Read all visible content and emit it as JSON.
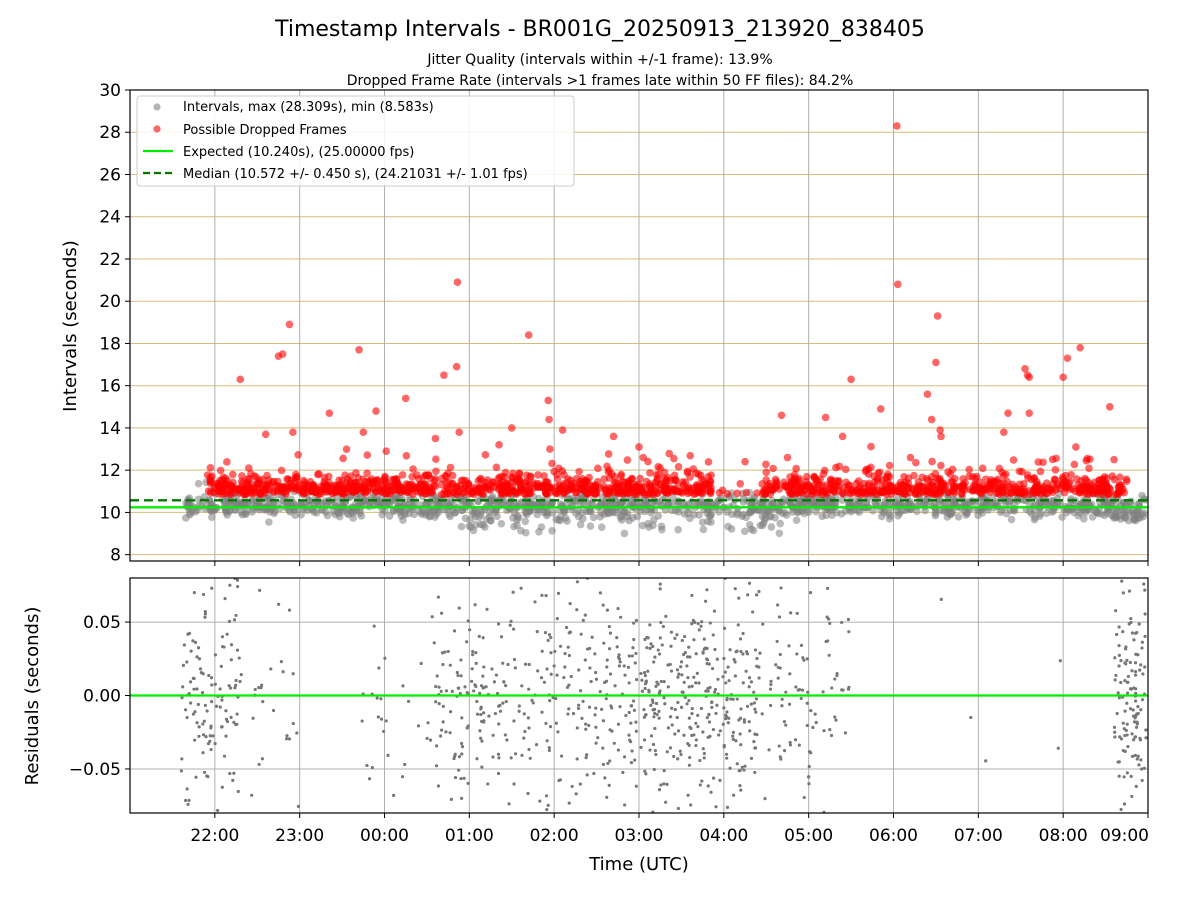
{
  "chart_data": [
    {
      "type": "scatter",
      "title": "Timestamp Intervals - BR001G_20250913_213920_838405",
      "subtitle_lines": [
        "Jitter Quality (intervals within +/-1 frame): 13.9%",
        "Dropped Frame Rate (intervals >1 frames late within 50 FF files): 84.2%"
      ],
      "ylabel": "Intervals (seconds)",
      "ylim": [
        7.7,
        30
      ],
      "yticks": [
        8,
        10,
        12,
        14,
        16,
        18,
        20,
        22,
        24,
        26,
        28,
        30
      ],
      "ytick_labels": [
        "8",
        "10",
        "12",
        "14",
        "16",
        "18",
        "20",
        "22",
        "24",
        "26",
        "28",
        "30"
      ],
      "xlim_hours": [
        21.0,
        33.0
      ],
      "grid": "x-major gray; y-major tan",
      "legend_location": "upper-left",
      "legend": [
        {
          "label": "Intervals, max (28.309s), min (8.583s)",
          "marker": "circle",
          "color": "#808080"
        },
        {
          "label": "Possible Dropped Frames",
          "marker": "circle",
          "color": "#ff0000"
        },
        {
          "label": "Expected (10.240s), (25.00000 fps)",
          "line": "solid",
          "color": "#00ee00"
        },
        {
          "label": "Median (10.572 +/- 0.450 s), (24.21031 +/- 1.01 fps)",
          "line": "dashed",
          "color": "#007a00"
        }
      ],
      "expected_value": 10.24,
      "median_value": 10.572,
      "max_interval": 28.309,
      "min_interval": 8.583,
      "series": [
        {
          "name": "Possible Dropped Frames (outliers)",
          "color": "#ff0000",
          "points": [
            [
              22.3,
              16.3
            ],
            [
              22.75,
              17.4
            ],
            [
              22.8,
              17.5
            ],
            [
              22.88,
              18.9
            ],
            [
              22.6,
              13.7
            ],
            [
              22.92,
              13.8
            ],
            [
              23.35,
              14.7
            ],
            [
              23.7,
              17.7
            ],
            [
              23.75,
              13.8
            ],
            [
              23.9,
              14.8
            ],
            [
              24.02,
              12.9
            ],
            [
              24.25,
              15.4
            ],
            [
              24.6,
              13.5
            ],
            [
              24.7,
              16.5
            ],
            [
              24.88,
              13.8
            ],
            [
              24.85,
              16.9
            ],
            [
              24.86,
              20.9
            ],
            [
              25.35,
              13.2
            ],
            [
              25.5,
              14.0
            ],
            [
              25.7,
              18.4
            ],
            [
              25.93,
              15.3
            ],
            [
              25.94,
              14.4
            ],
            [
              25.95,
              13.0
            ],
            [
              26.1,
              13.9
            ],
            [
              26.7,
              13.6
            ],
            [
              27.0,
              13.1
            ],
            [
              27.05,
              12.6
            ],
            [
              27.25,
              12.1
            ],
            [
              27.3,
              11.9
            ],
            [
              28.25,
              12.4
            ],
            [
              28.5,
              11.9
            ],
            [
              28.68,
              14.6
            ],
            [
              28.75,
              12.6
            ],
            [
              29.2,
              14.5
            ],
            [
              29.4,
              13.6
            ],
            [
              29.5,
              16.3
            ],
            [
              29.85,
              14.9
            ],
            [
              30.05,
              20.8
            ],
            [
              30.04,
              28.3
            ],
            [
              30.2,
              12.6
            ],
            [
              30.4,
              15.6
            ],
            [
              30.45,
              14.4
            ],
            [
              30.5,
              17.1
            ],
            [
              30.52,
              19.3
            ],
            [
              30.55,
              13.9
            ],
            [
              30.56,
              13.6
            ],
            [
              31.3,
              13.8
            ],
            [
              31.35,
              14.7
            ],
            [
              31.55,
              16.8
            ],
            [
              31.58,
              16.5
            ],
            [
              31.6,
              16.4
            ],
            [
              31.6,
              14.7
            ],
            [
              32.0,
              16.4
            ],
            [
              32.05,
              17.3
            ],
            [
              32.2,
              17.8
            ],
            [
              32.15,
              13.1
            ],
            [
              32.55,
              15.0
            ],
            [
              32.6,
              12.5
            ]
          ]
        }
      ]
    },
    {
      "type": "scatter",
      "xlabel": "Time (UTC)",
      "ylabel": "Residuals (seconds)",
      "ylim": [
        -0.08,
        0.08
      ],
      "yticks": [
        0.05,
        0.0,
        -0.05
      ],
      "ytick_labels": [
        "0.05",
        "0.00",
        "−0.05"
      ],
      "xlim_hours": [
        21.0,
        33.0
      ],
      "xticks_hours": [
        22,
        23,
        24,
        25,
        26,
        27,
        28,
        29,
        30,
        31,
        32,
        33
      ],
      "xtick_labels": [
        "22:00",
        "23:00",
        "00:00",
        "01:00",
        "02:00",
        "03:00",
        "04:00",
        "05:00",
        "06:00",
        "07:00",
        "08:00",
        "09:00"
      ],
      "zero_line_color": "#00ee00",
      "point_color": "#777777"
    }
  ],
  "colors": {
    "interval_gray": "#808080",
    "dropped_red": "#ff0000",
    "expected_green": "#00ee00",
    "median_dark_green": "#007a00",
    "y_grid_tan": "#d9bc7c",
    "x_grid_gray": "#b0b0b0"
  }
}
